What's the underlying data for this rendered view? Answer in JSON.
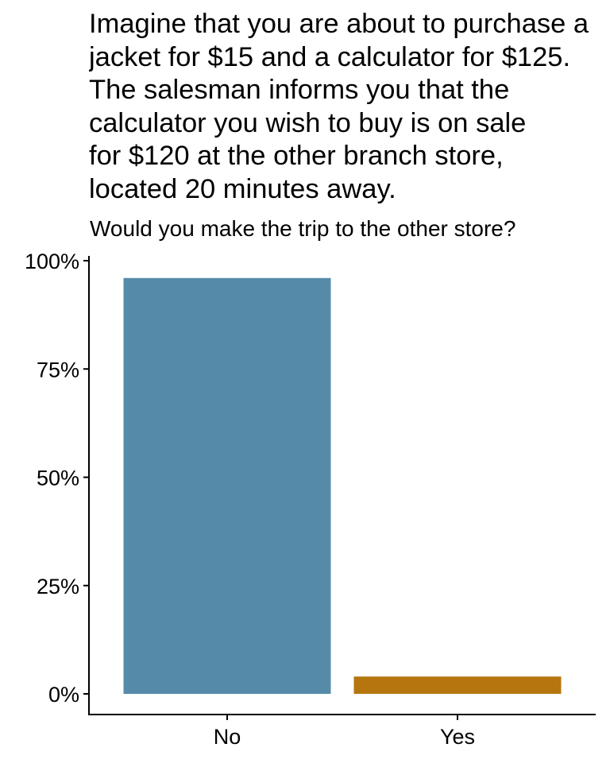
{
  "chart_data": {
    "type": "bar",
    "title_lines": [
      "Imagine that you are about to purchase a",
      "jacket for $15 and a calculator for $125.",
      "The salesman informs you that the",
      "calculator you wish to buy is on sale",
      "for $120 at the other branch store,",
      "located 20 minutes away."
    ],
    "subtitle": "Would you make the trip to the other store?",
    "categories": [
      "No",
      "Yes"
    ],
    "values": [
      0.96,
      0.04
    ],
    "colors": [
      "#558ba8",
      "#b5760f"
    ],
    "ylim": [
      0,
      1
    ],
    "yticks": [
      0,
      0.25,
      0.5,
      0.75,
      1
    ],
    "ytick_labels": [
      "0%",
      "25%",
      "50%",
      "75%",
      "100%"
    ],
    "xlabel": "",
    "ylabel": "",
    "grid": false,
    "legend": "none"
  }
}
